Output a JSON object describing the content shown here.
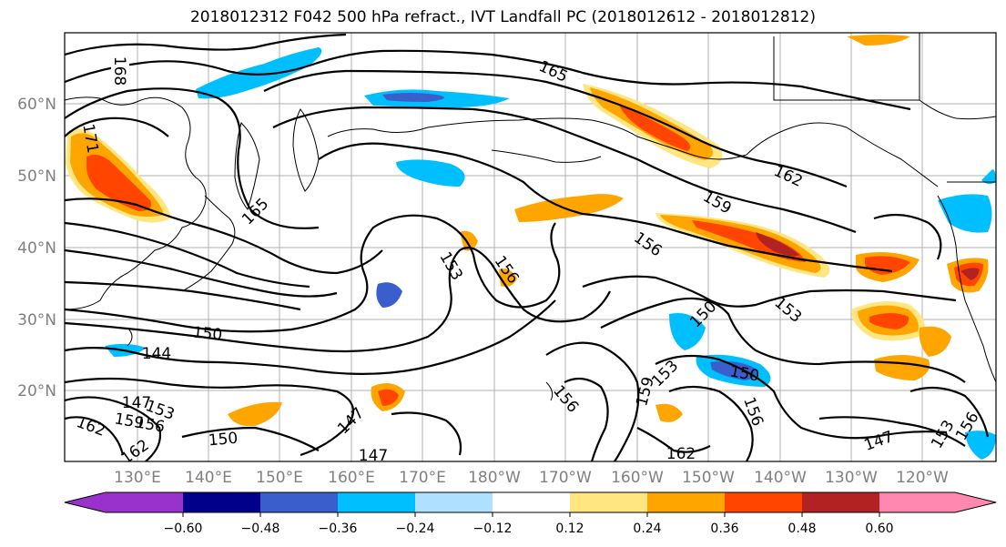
{
  "title": "2018012312 F042 500 hPa refract., IVT Landfall PC (2018012612 - 2018012812)",
  "lat_labels": [
    "60°N",
    "50°N",
    "40°N",
    "30°N",
    "20°N"
  ],
  "lon_labels": [
    "130°E",
    "140°E",
    "150°E",
    "160°E",
    "170°E",
    "180°W",
    "170°W",
    "160°W",
    "150°W",
    "140°W",
    "130°W",
    "120°W"
  ],
  "colorbar": {
    "colors": [
      "#9932cc",
      "#00008b",
      "#3a5fcd",
      "#00bfff",
      "#b0e0ff",
      "#ffffff",
      "#ffe680",
      "#ffa500",
      "#ff4500",
      "#b22222",
      "#ff88b0"
    ],
    "tick_labels": [
      "−0.60",
      "−0.48",
      "−0.36",
      "−0.24",
      "−0.12",
      "0.12",
      "0.24",
      "0.36",
      "0.48",
      "0.60"
    ]
  },
  "contour_labels": [
    "168",
    "165",
    "171",
    "165",
    "162",
    "159",
    "156",
    "153",
    "150",
    "144",
    "147",
    "162",
    "159",
    "156",
    "153",
    "150",
    "147",
    "162",
    "147",
    "153",
    "156",
    "150",
    "153",
    "156",
    "159",
    "162",
    "165",
    "153",
    "150",
    "147",
    "156",
    "153",
    "156"
  ],
  "colors": {
    "grid": "#b0b0b0",
    "tick_text": "#808080"
  }
}
